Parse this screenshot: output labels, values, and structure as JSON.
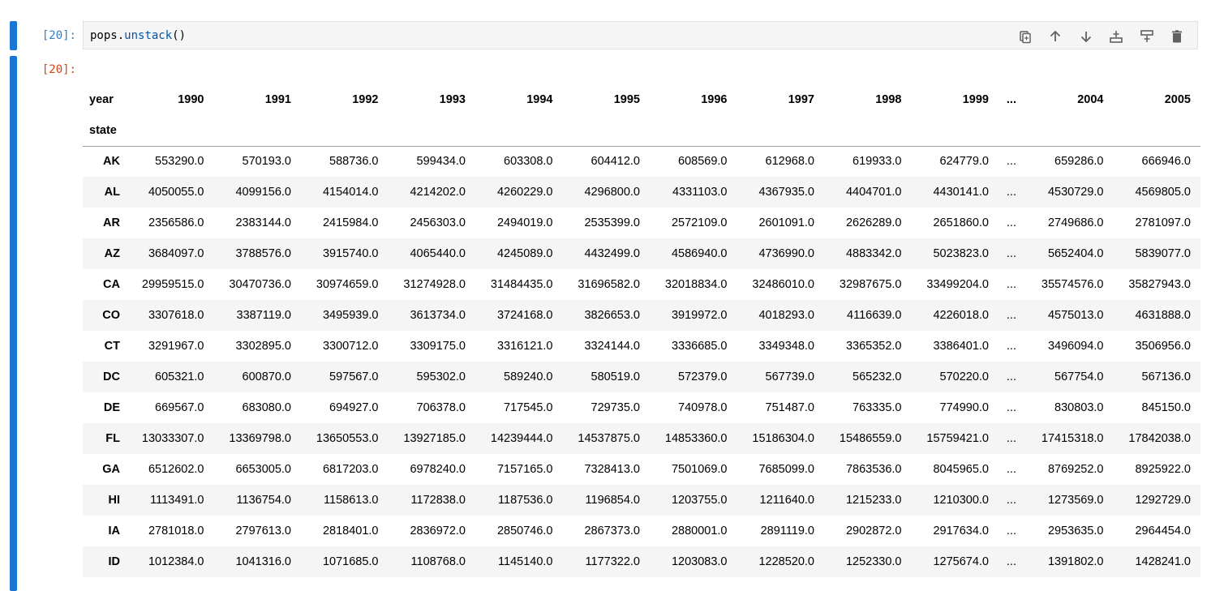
{
  "input_cell": {
    "prompt": "[20]:",
    "code_object": "pops.",
    "code_method": "unstack",
    "code_parens": "()"
  },
  "toolbar": {
    "icons": [
      "copy-icon",
      "move-up-icon",
      "move-down-icon",
      "insert-above-icon",
      "insert-below-icon",
      "delete-icon"
    ]
  },
  "output_cell": {
    "prompt": "[20]:"
  },
  "dataframe": {
    "columns_name": "year",
    "index_name": "state",
    "columns": [
      "1990",
      "1991",
      "1992",
      "1993",
      "1994",
      "1995",
      "1996",
      "1997",
      "1998",
      "1999",
      "...",
      "2004",
      "2005"
    ],
    "rows": [
      {
        "state": "AK",
        "values": [
          "553290.0",
          "570193.0",
          "588736.0",
          "599434.0",
          "603308.0",
          "604412.0",
          "608569.0",
          "612968.0",
          "619933.0",
          "624779.0",
          "...",
          "659286.0",
          "666946.0"
        ]
      },
      {
        "state": "AL",
        "values": [
          "4050055.0",
          "4099156.0",
          "4154014.0",
          "4214202.0",
          "4260229.0",
          "4296800.0",
          "4331103.0",
          "4367935.0",
          "4404701.0",
          "4430141.0",
          "...",
          "4530729.0",
          "4569805.0"
        ]
      },
      {
        "state": "AR",
        "values": [
          "2356586.0",
          "2383144.0",
          "2415984.0",
          "2456303.0",
          "2494019.0",
          "2535399.0",
          "2572109.0",
          "2601091.0",
          "2626289.0",
          "2651860.0",
          "...",
          "2749686.0",
          "2781097.0"
        ]
      },
      {
        "state": "AZ",
        "values": [
          "3684097.0",
          "3788576.0",
          "3915740.0",
          "4065440.0",
          "4245089.0",
          "4432499.0",
          "4586940.0",
          "4736990.0",
          "4883342.0",
          "5023823.0",
          "...",
          "5652404.0",
          "5839077.0"
        ]
      },
      {
        "state": "CA",
        "values": [
          "29959515.0",
          "30470736.0",
          "30974659.0",
          "31274928.0",
          "31484435.0",
          "31696582.0",
          "32018834.0",
          "32486010.0",
          "32987675.0",
          "33499204.0",
          "...",
          "35574576.0",
          "35827943.0"
        ]
      },
      {
        "state": "CO",
        "values": [
          "3307618.0",
          "3387119.0",
          "3495939.0",
          "3613734.0",
          "3724168.0",
          "3826653.0",
          "3919972.0",
          "4018293.0",
          "4116639.0",
          "4226018.0",
          "...",
          "4575013.0",
          "4631888.0"
        ]
      },
      {
        "state": "CT",
        "values": [
          "3291967.0",
          "3302895.0",
          "3300712.0",
          "3309175.0",
          "3316121.0",
          "3324144.0",
          "3336685.0",
          "3349348.0",
          "3365352.0",
          "3386401.0",
          "...",
          "3496094.0",
          "3506956.0"
        ]
      },
      {
        "state": "DC",
        "values": [
          "605321.0",
          "600870.0",
          "597567.0",
          "595302.0",
          "589240.0",
          "580519.0",
          "572379.0",
          "567739.0",
          "565232.0",
          "570220.0",
          "...",
          "567754.0",
          "567136.0"
        ]
      },
      {
        "state": "DE",
        "values": [
          "669567.0",
          "683080.0",
          "694927.0",
          "706378.0",
          "717545.0",
          "729735.0",
          "740978.0",
          "751487.0",
          "763335.0",
          "774990.0",
          "...",
          "830803.0",
          "845150.0"
        ]
      },
      {
        "state": "FL",
        "values": [
          "13033307.0",
          "13369798.0",
          "13650553.0",
          "13927185.0",
          "14239444.0",
          "14537875.0",
          "14853360.0",
          "15186304.0",
          "15486559.0",
          "15759421.0",
          "...",
          "17415318.0",
          "17842038.0"
        ]
      },
      {
        "state": "GA",
        "values": [
          "6512602.0",
          "6653005.0",
          "6817203.0",
          "6978240.0",
          "7157165.0",
          "7328413.0",
          "7501069.0",
          "7685099.0",
          "7863536.0",
          "8045965.0",
          "...",
          "8769252.0",
          "8925922.0"
        ]
      },
      {
        "state": "HI",
        "values": [
          "1113491.0",
          "1136754.0",
          "1158613.0",
          "1172838.0",
          "1187536.0",
          "1196854.0",
          "1203755.0",
          "1211640.0",
          "1215233.0",
          "1210300.0",
          "...",
          "1273569.0",
          "1292729.0"
        ]
      },
      {
        "state": "IA",
        "values": [
          "2781018.0",
          "2797613.0",
          "2818401.0",
          "2836972.0",
          "2850746.0",
          "2867373.0",
          "2880001.0",
          "2891119.0",
          "2902872.0",
          "2917634.0",
          "...",
          "2953635.0",
          "2964454.0"
        ]
      },
      {
        "state": "ID",
        "values": [
          "1012384.0",
          "1041316.0",
          "1071685.0",
          "1108768.0",
          "1145140.0",
          "1177322.0",
          "1203083.0",
          "1228520.0",
          "1252330.0",
          "1275674.0",
          "...",
          "1391802.0",
          "1428241.0"
        ]
      }
    ]
  }
}
